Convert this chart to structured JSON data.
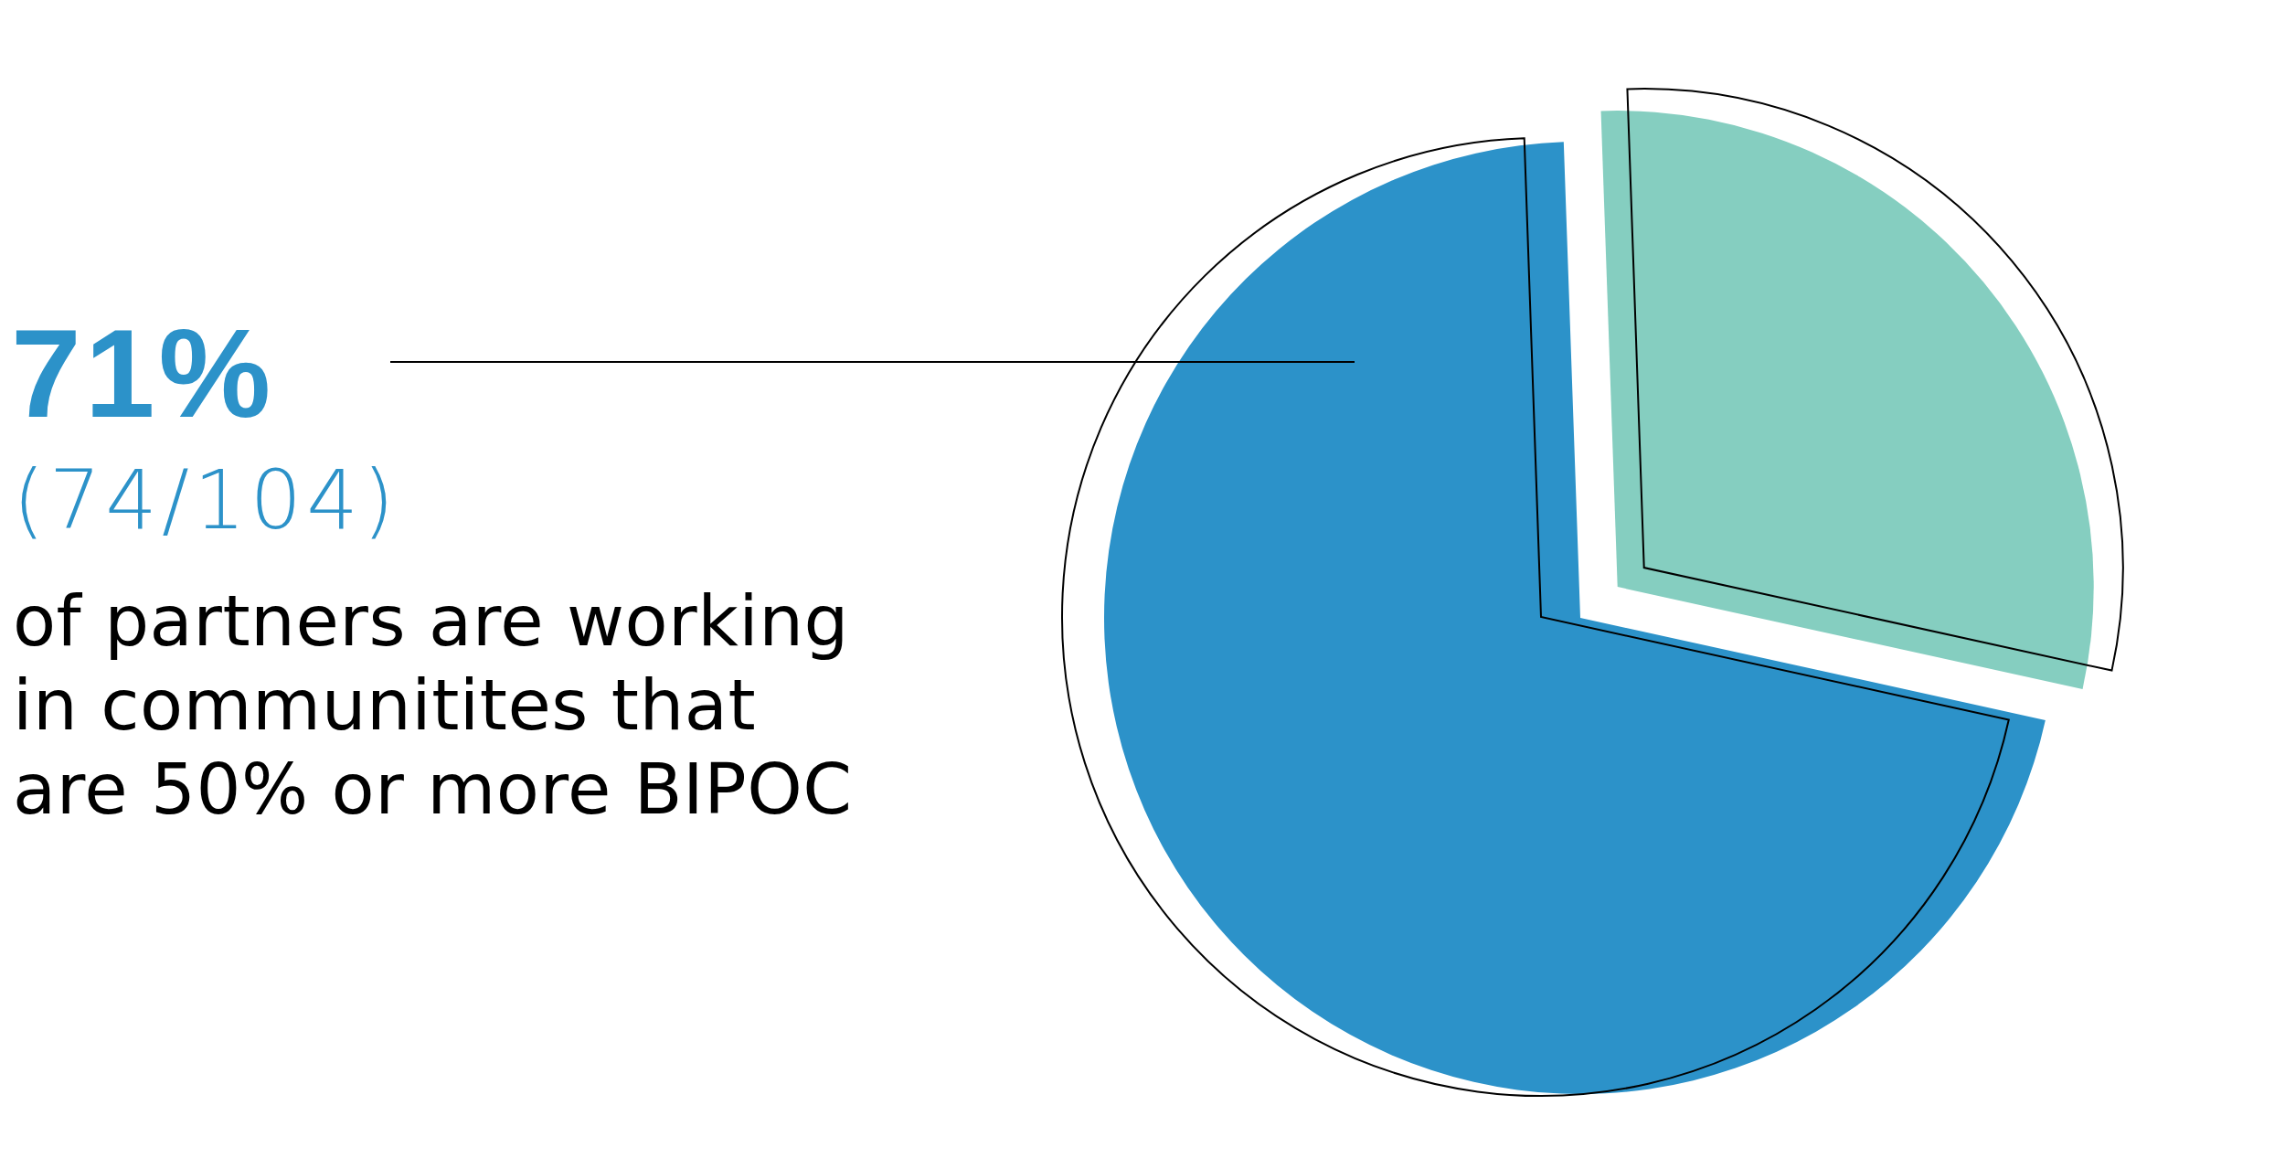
{
  "chart_data": {
    "type": "pie",
    "categories": [
      null,
      null
    ],
    "values": [
      71,
      29
    ],
    "colors": [
      "#2c92c9",
      "#85cec0"
    ],
    "value_labels": [
      "71%",
      null
    ],
    "annotations": [
      "(74/104)",
      "of partners are working in communitites that are 50% or more BIPOC"
    ]
  }
}
